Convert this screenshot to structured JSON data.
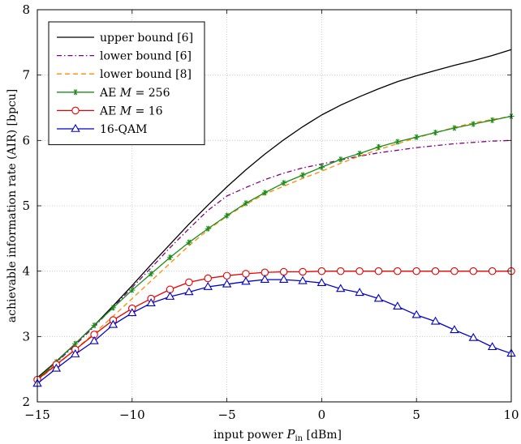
{
  "chart_data": {
    "type": "line",
    "xlabel": "input power P_in [dBm]",
    "xlabel_parts": {
      "prefix": "input power ",
      "var": "P",
      "sub": "in",
      "suffix": " [dBm]"
    },
    "ylabel": "achievable information rate (AIR) [bpcu]",
    "xlim": [
      -15,
      10
    ],
    "ylim": [
      2,
      8
    ],
    "xticks": [
      -15,
      -10,
      -5,
      0,
      5,
      10
    ],
    "xtick_labels": [
      "−15",
      "−10",
      "−5",
      "0",
      "5",
      "10"
    ],
    "yticks": [
      2,
      3,
      4,
      5,
      6,
      7,
      8
    ],
    "ytick_labels": [
      "2",
      "3",
      "4",
      "5",
      "6",
      "7",
      "8"
    ],
    "grid": true,
    "legend_position": "top-left",
    "series": [
      {
        "name": "upper bound [6]",
        "legend": {
          "text": "upper bound [6]"
        },
        "color": "#000000",
        "dash": "solid",
        "marker": "none",
        "x": [
          -15,
          -14,
          -13,
          -12,
          -11,
          -10,
          -9,
          -8,
          -7,
          -6,
          -5,
          -4,
          -3,
          -2,
          -1,
          0,
          1,
          2,
          3,
          4,
          5,
          6,
          7,
          8,
          9,
          10
        ],
        "y": [
          2.37,
          2.62,
          2.89,
          3.17,
          3.47,
          3.78,
          4.1,
          4.41,
          4.72,
          5.01,
          5.29,
          5.55,
          5.79,
          6.01,
          6.21,
          6.39,
          6.54,
          6.67,
          6.79,
          6.9,
          6.99,
          7.07,
          7.15,
          7.22,
          7.3,
          7.39
        ]
      },
      {
        "name": "lower bound [6]",
        "legend": {
          "text": "lower bound [6]"
        },
        "color": "#800080",
        "dash": "dashdot",
        "marker": "none",
        "x": [
          -15,
          -14,
          -13,
          -12,
          -11,
          -10,
          -9,
          -8,
          -7,
          -6,
          -5,
          -4,
          -3,
          -2,
          -1,
          0,
          1,
          2,
          3,
          4,
          5,
          6,
          7,
          8,
          9,
          10
        ],
        "y": [
          2.35,
          2.6,
          2.87,
          3.15,
          3.45,
          3.75,
          4.05,
          4.36,
          4.65,
          4.93,
          5.15,
          5.28,
          5.4,
          5.5,
          5.58,
          5.64,
          5.7,
          5.76,
          5.81,
          5.85,
          5.89,
          5.92,
          5.95,
          5.97,
          5.99,
          6.0
        ]
      },
      {
        "name": "lower bound [8]",
        "legend": {
          "text": "lower bound [8]"
        },
        "color": "#ff8c00",
        "dash": "dashed",
        "marker": "none",
        "x": [
          -15,
          -14,
          -13,
          -12,
          -11,
          -10,
          -9,
          -8,
          -7,
          -6,
          -5,
          -4,
          -3,
          -2,
          -1,
          0,
          1,
          2,
          3,
          4,
          5,
          6,
          7,
          8,
          9,
          10
        ],
        "y": [
          2.33,
          2.56,
          2.8,
          3.05,
          3.31,
          3.58,
          3.85,
          4.12,
          4.39,
          4.63,
          4.84,
          5.02,
          5.18,
          5.3,
          5.42,
          5.53,
          5.65,
          5.76,
          5.86,
          5.95,
          6.04,
          6.12,
          6.2,
          6.27,
          6.32,
          6.37
        ]
      },
      {
        "name": "AE M = 256",
        "legend": {
          "prefix": "AE ",
          "var": "M",
          "suffix": " = 256"
        },
        "color": "#1a8c1a",
        "dash": "solid",
        "marker": "asterisk",
        "x": [
          -15,
          -14,
          -13,
          -12,
          -11,
          -10,
          -9,
          -8,
          -7,
          -6,
          -5,
          -4,
          -3,
          -2,
          -1,
          0,
          1,
          2,
          3,
          4,
          5,
          6,
          7,
          8,
          9,
          10
        ],
        "y": [
          2.35,
          2.61,
          2.89,
          3.17,
          3.44,
          3.71,
          3.96,
          4.21,
          4.44,
          4.65,
          4.85,
          5.04,
          5.2,
          5.35,
          5.47,
          5.59,
          5.71,
          5.8,
          5.9,
          5.98,
          6.05,
          6.12,
          6.19,
          6.25,
          6.31,
          6.37
        ]
      },
      {
        "name": "AE M = 16",
        "legend": {
          "prefix": "AE ",
          "var": "M",
          "suffix": " = 16"
        },
        "color": "#e60000",
        "dash": "solid",
        "marker": "circle",
        "x": [
          -15,
          -14,
          -13,
          -12,
          -11,
          -10,
          -9,
          -8,
          -7,
          -6,
          -5,
          -4,
          -3,
          -2,
          -1,
          0,
          1,
          2,
          3,
          4,
          5,
          6,
          7,
          8,
          9,
          10
        ],
        "y": [
          2.34,
          2.57,
          2.8,
          3.03,
          3.25,
          3.43,
          3.58,
          3.72,
          3.83,
          3.89,
          3.93,
          3.96,
          3.98,
          3.99,
          3.99,
          4.0,
          4.0,
          4.0,
          4.0,
          4.0,
          4.0,
          4.0,
          4.0,
          4.0,
          4.0,
          4.0
        ]
      },
      {
        "name": "16-QAM",
        "legend": {
          "text": "16-QAM"
        },
        "color": "#0000cc",
        "dash": "solid",
        "marker": "triangle",
        "x": [
          -15,
          -14,
          -13,
          -12,
          -11,
          -10,
          -9,
          -8,
          -7,
          -6,
          -5,
          -4,
          -3,
          -2,
          -1,
          0,
          1,
          2,
          3,
          4,
          5,
          6,
          7,
          8,
          9,
          10
        ],
        "y": [
          2.28,
          2.51,
          2.73,
          2.93,
          3.18,
          3.36,
          3.51,
          3.61,
          3.68,
          3.76,
          3.8,
          3.84,
          3.87,
          3.87,
          3.85,
          3.82,
          3.73,
          3.67,
          3.58,
          3.46,
          3.33,
          3.23,
          3.1,
          2.98,
          2.84,
          2.74
        ]
      }
    ]
  }
}
